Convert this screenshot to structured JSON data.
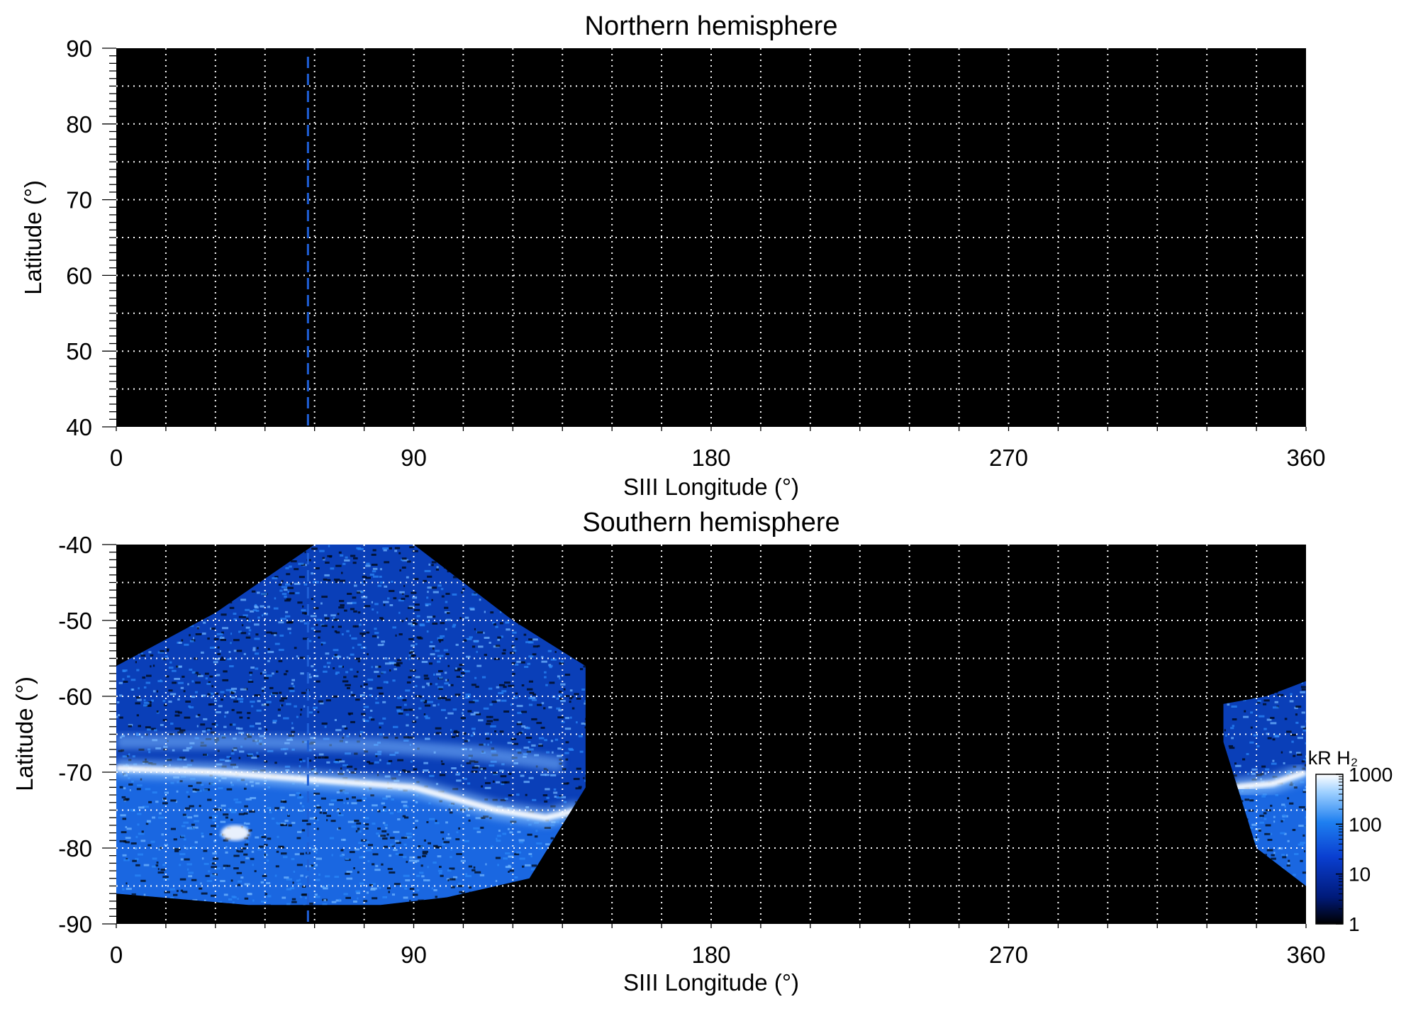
{
  "chart_data": [
    {
      "type": "heatmap",
      "title": "Northern hemisphere",
      "xlabel": "SIII Longitude (°)",
      "ylabel": "Latitude (°)",
      "xlim": [
        0,
        360
      ],
      "ylim": [
        40,
        90
      ],
      "xticks": [
        0,
        90,
        180,
        270,
        360
      ],
      "yticks": [
        40,
        50,
        60,
        70,
        80,
        90
      ],
      "xtick_labels": [
        "0",
        "90",
        "180",
        "270",
        "360"
      ],
      "ytick_labels": [
        "40",
        "50",
        "60",
        "70",
        "80",
        "90"
      ],
      "grid": true,
      "grid_spacing": {
        "x": 15,
        "y": 5
      },
      "reference_line_longitude": 58,
      "emission_regions": []
    },
    {
      "type": "heatmap",
      "title": "Southern hemisphere",
      "xlabel": "SIII Longitude (°)",
      "ylabel": "Latitude (°)",
      "xlim": [
        0,
        360
      ],
      "ylim": [
        -90,
        -40
      ],
      "xticks": [
        0,
        90,
        180,
        270,
        360
      ],
      "yticks": [
        -90,
        -80,
        -70,
        -60,
        -50,
        -40
      ],
      "xtick_labels": [
        "0",
        "90",
        "180",
        "270",
        "360"
      ],
      "ytick_labels": [
        "-90",
        "-80",
        "-70",
        "-60",
        "-50",
        "-40"
      ],
      "grid": true,
      "grid_spacing": {
        "x": 15,
        "y": 5
      },
      "reference_line_longitude": 58,
      "emission_regions": [
        {
          "name": "main",
          "lon_range": [
            0,
            142
          ],
          "lat_top_profile": [
            [
              0,
              -56
            ],
            [
              30,
              -49
            ],
            [
              60,
              -40
            ],
            [
              90,
              -40
            ],
            [
              120,
              -50
            ],
            [
              142,
              -56
            ]
          ],
          "lat_bottom_profile": [
            [
              0,
              -86
            ],
            [
              40,
              -87.5
            ],
            [
              80,
              -87.5
            ],
            [
              100,
              -86.5
            ],
            [
              125,
              -84
            ],
            [
              142,
              -72
            ]
          ],
          "auroral_arc": [
            [
              0,
              -69.5
            ],
            [
              30,
              -70
            ],
            [
              60,
              -71
            ],
            [
              90,
              -72
            ],
            [
              115,
              -75
            ],
            [
              130,
              -76
            ],
            [
              140,
              -75
            ]
          ],
          "bright_spot": {
            "lon": 36,
            "lat": -78
          }
        },
        {
          "name": "edge",
          "lon_range": [
            335,
            360
          ],
          "lat_top_profile": [
            [
              335,
              -61
            ],
            [
              348,
              -60
            ],
            [
              360,
              -58
            ]
          ],
          "lat_bottom_profile": [
            [
              335,
              -66
            ],
            [
              345,
              -80
            ],
            [
              360,
              -85
            ]
          ],
          "auroral_arc": [
            [
              338,
              -72
            ],
            [
              350,
              -71.5
            ],
            [
              360,
              -70
            ]
          ]
        }
      ],
      "colorbar": {
        "label": "kR H₂",
        "scale": "log",
        "range": [
          1,
          1000
        ],
        "ticks": [
          1,
          10,
          100,
          1000
        ],
        "tick_labels": [
          "1",
          "10",
          "100",
          "1000"
        ],
        "colors": [
          "#000000",
          "#001a7a",
          "#0a3fd1",
          "#1e7ff0",
          "#9ed0ff",
          "#ffffff"
        ]
      }
    }
  ],
  "colors": {
    "reference_line": "#1f5fd6",
    "grid": "#ffffff",
    "background": "#000000"
  }
}
